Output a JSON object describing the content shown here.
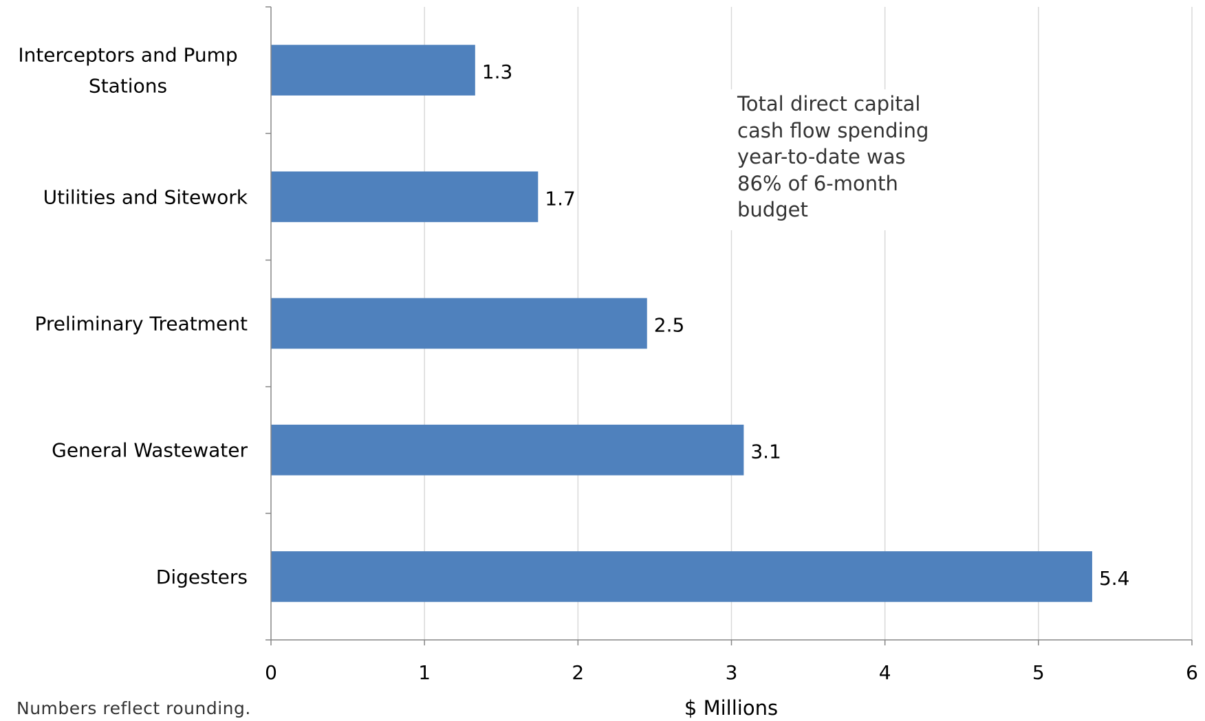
{
  "chart_data": {
    "type": "bar",
    "orientation": "horizontal",
    "categories": [
      "Interceptors and Pump Stations",
      "Utilities and Sitework",
      "Preliminary Treatment",
      "General Wastewater",
      "Digesters"
    ],
    "category_label_lines": [
      [
        "Interceptors and Pump",
        "Stations"
      ],
      [
        "Utilities and Sitework"
      ],
      [
        "Preliminary Treatment"
      ],
      [
        "General Wastewater"
      ],
      [
        "Digesters"
      ]
    ],
    "values": [
      1.33,
      1.74,
      2.45,
      3.08,
      5.35
    ],
    "data_labels": [
      "1.3",
      "1.7",
      "2.5",
      "3.1",
      "5.4"
    ],
    "xlabel": "$ Millions",
    "xlim": [
      0,
      6
    ],
    "x_ticks": [
      "0",
      "1",
      "2",
      "3",
      "4",
      "5",
      "6"
    ],
    "grid": true,
    "bar_color": "#4f81bd",
    "grid_color": "#d9d9d9",
    "annotation": "Total direct capital cash flow spending year-to-date was 86% of 6-month budget"
  },
  "annotation_lines": [
    "Total direct capital",
    "cash flow spending",
    "year-to-date was",
    "86% of 6-month",
    "budget"
  ],
  "footnote": "Numbers reflect rounding."
}
